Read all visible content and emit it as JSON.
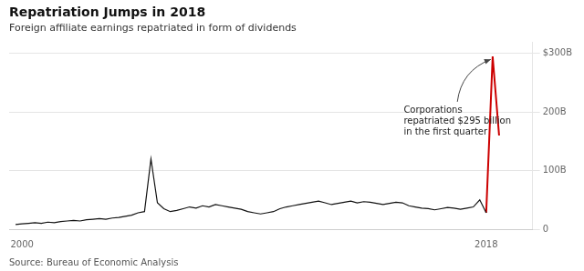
{
  "chart_data": {
    "type": "line",
    "title": "Repatriation Jumps in 2018",
    "subtitle": "Foreign affiliate earnings repatriated in form of dividends",
    "source": "Source: Bureau of Economic Analysis",
    "series": [
      {
        "color": "#111111",
        "x": [
          1999.75,
          2000.0,
          2000.25,
          2000.5,
          2000.75,
          2001.0,
          2001.25,
          2001.5,
          2001.75,
          2002.0,
          2002.25,
          2002.5,
          2002.75,
          2003.0,
          2003.25,
          2003.5,
          2003.75,
          2004.0,
          2004.25,
          2004.5,
          2004.75,
          2005.0,
          2005.25,
          2005.5,
          2005.75,
          2006.0,
          2006.25,
          2006.5,
          2006.75,
          2007.0,
          2007.25,
          2007.5,
          2007.75,
          2008.0,
          2008.25,
          2008.5,
          2008.75,
          2009.0,
          2009.25,
          2009.5,
          2009.75,
          2010.0,
          2010.25,
          2010.5,
          2010.75,
          2011.0,
          2011.25,
          2011.5,
          2011.75,
          2012.0,
          2012.25,
          2012.5,
          2012.75,
          2013.0,
          2013.25,
          2013.5,
          2013.75,
          2014.0,
          2014.25,
          2014.5,
          2014.75,
          2015.0,
          2015.25,
          2015.5,
          2015.75,
          2016.0,
          2016.25,
          2016.5,
          2016.75,
          2017.0,
          2017.25,
          2017.5,
          2017.75,
          2018.0
        ],
        "values": [
          8,
          9,
          10,
          11,
          10,
          12,
          11,
          13,
          14,
          15,
          14,
          16,
          17,
          18,
          17,
          19,
          20,
          22,
          24,
          28,
          30,
          120,
          45,
          35,
          30,
          32,
          35,
          38,
          36,
          40,
          38,
          42,
          40,
          38,
          36,
          34,
          30,
          28,
          26,
          28,
          30,
          35,
          38,
          40,
          42,
          44,
          46,
          48,
          45,
          42,
          44,
          46,
          48,
          45,
          47,
          46,
          44,
          42,
          44,
          46,
          45,
          40,
          38,
          36,
          35,
          33,
          35,
          37,
          36,
          34,
          36,
          38,
          50,
          28
        ]
      },
      {
        "color": "#cc0000",
        "x": [
          2018.0,
          2018.25,
          2018.5
        ],
        "values": [
          28,
          295,
          160
        ]
      }
    ],
    "xlim": [
      1999.5,
      2019.8
    ],
    "xticks": [
      2000,
      2018
    ],
    "ylim": [
      0,
      320
    ],
    "yticks": [
      0,
      {
        "value": 100,
        "label": "100B"
      },
      {
        "value": 200,
        "label": "200B"
      },
      {
        "value": 300,
        "label": "$300B"
      }
    ],
    "grid": true,
    "annotations": [
      {
        "text": "Corporations\nrepatriated $295 billion\nin the first quarter",
        "x": 2014.8,
        "y": 185,
        "arrow_x": 2018.18,
        "arrow_y": 290
      }
    ]
  }
}
